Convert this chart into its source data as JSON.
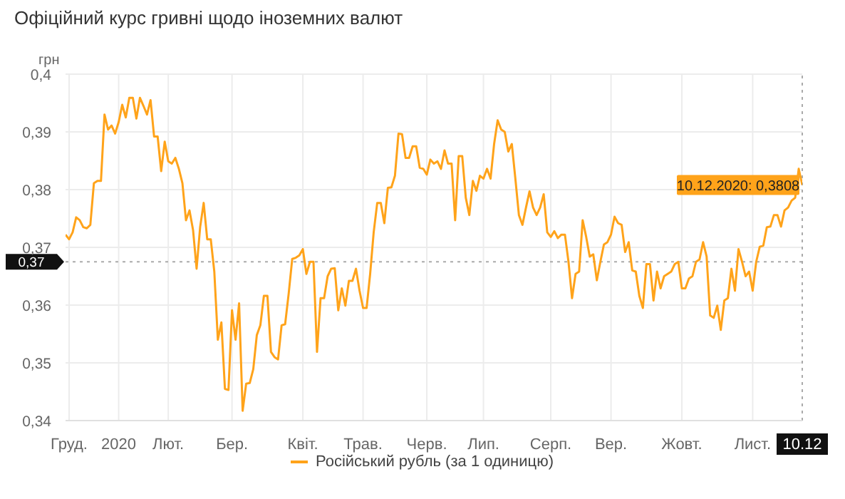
{
  "chart_data": {
    "type": "line",
    "title": "Офіційний курс гривні щодо іноземних валют",
    "ylabel": "грн",
    "categories": [
      null,
      "Груд.",
      null,
      null,
      null,
      null,
      null,
      null,
      null,
      null,
      null,
      null,
      null,
      null,
      null,
      "2020",
      null,
      null,
      null,
      null,
      null,
      null,
      null,
      null,
      null,
      null,
      null,
      null,
      null,
      "Лют.",
      null,
      null,
      null,
      null,
      null,
      null,
      null,
      null,
      null,
      null,
      null,
      null,
      null,
      null,
      null,
      null,
      null,
      "Бер.",
      null,
      null,
      null,
      null,
      null,
      null,
      null,
      null,
      null,
      null,
      null,
      null,
      null,
      null,
      null,
      null,
      null,
      null,
      null,
      "Квіт.",
      null,
      null,
      null,
      null,
      null,
      null,
      null,
      null,
      null,
      null,
      null,
      null,
      null,
      null,
      null,
      null,
      "Трав.",
      null,
      null,
      null,
      null,
      null,
      null,
      null,
      null,
      null,
      null,
      null,
      null,
      null,
      null,
      null,
      null,
      null,
      "Черв.",
      null,
      null,
      null,
      null,
      null,
      null,
      null,
      null,
      null,
      null,
      null,
      null,
      null,
      null,
      null,
      "Лип.",
      null,
      null,
      null,
      null,
      null,
      null,
      null,
      null,
      null,
      null,
      null,
      null,
      null,
      null,
      null,
      null,
      null,
      null,
      "Серп.",
      null,
      null,
      null,
      null,
      null,
      null,
      null,
      null,
      null,
      null,
      null,
      null,
      null,
      null,
      null,
      null,
      "Вер.",
      null,
      null,
      null,
      null,
      null,
      null,
      null,
      null,
      null,
      null,
      null,
      null,
      null,
      null,
      null,
      null,
      null,
      null,
      null,
      "Жовт.",
      null,
      null,
      null,
      null,
      null,
      null,
      null,
      null,
      null,
      null,
      null,
      null,
      null,
      null,
      null,
      null,
      null,
      null,
      null,
      "Лист.",
      null,
      null,
      null,
      null,
      null,
      null,
      null,
      null,
      null,
      null,
      null,
      null,
      null,
      "10.12"
    ],
    "ylim": [
      0.34,
      0.4
    ],
    "yticks": [
      {
        "value": 0.34,
        "label": "0,34"
      },
      {
        "value": 0.35,
        "label": "0,35"
      },
      {
        "value": 0.36,
        "label": "0,36"
      },
      {
        "value": 0.37,
        "label": "0,37"
      },
      {
        "value": 0.38,
        "label": "0,38"
      },
      {
        "value": 0.39,
        "label": "0,39"
      },
      {
        "value": 0.4,
        "label": "0,4"
      }
    ],
    "grid": true,
    "legend": "bottom",
    "ref_lines": [
      {
        "axis": "y",
        "value": 0.3675,
        "label": "0,37",
        "color": "#aaaaaa",
        "line_style": "dotted"
      },
      {
        "axis": "x",
        "value": "10.12",
        "color": "#aaaaaa",
        "line_style": "dotted"
      }
    ],
    "annotations": [
      {
        "text": "10.12.2020: 0,3808",
        "x": "10.12",
        "y": 0.3808
      }
    ],
    "series": [
      {
        "name": "Російський рубль (за 1 одиницю)",
        "color": "#ffa31a",
        "values": [
          0.3722,
          0.3714,
          0.3726,
          0.3752,
          0.3747,
          0.3735,
          0.3733,
          0.3739,
          0.3811,
          0.3815,
          0.3815,
          0.393,
          0.3904,
          0.3911,
          0.3897,
          0.3917,
          0.3947,
          0.3925,
          0.3959,
          0.3959,
          0.3923,
          0.3959,
          0.3945,
          0.393,
          0.3955,
          0.3892,
          0.3892,
          0.3832,
          0.3883,
          0.3849,
          0.3845,
          0.3855,
          0.3836,
          0.3811,
          0.3747,
          0.3764,
          0.373,
          0.3663,
          0.3735,
          0.3777,
          0.3714,
          0.3714,
          0.3658,
          0.354,
          0.357,
          0.3455,
          0.3453,
          0.3591,
          0.354,
          0.3603,
          0.3417,
          0.3464,
          0.3465,
          0.3489,
          0.3548,
          0.3565,
          0.3616,
          0.3616,
          0.3519,
          0.351,
          0.3506,
          0.3565,
          0.3567,
          0.362,
          0.368,
          0.3682,
          0.3686,
          0.3697,
          0.3654,
          0.3675,
          0.3675,
          0.3519,
          0.3612,
          0.3612,
          0.365,
          0.3663,
          0.3664,
          0.3591,
          0.3629,
          0.3599,
          0.3642,
          0.3642,
          0.3663,
          0.3625,
          0.3595,
          0.3595,
          0.3654,
          0.3726,
          0.3777,
          0.3777,
          0.3742,
          0.3803,
          0.3804,
          0.3824,
          0.3897,
          0.3896,
          0.3855,
          0.3855,
          0.3875,
          0.3875,
          0.3838,
          0.3836,
          0.3826,
          0.3852,
          0.3845,
          0.3849,
          0.3836,
          0.3868,
          0.3845,
          0.3845,
          0.3747,
          0.3858,
          0.3858,
          0.3786,
          0.3756,
          0.3815,
          0.3798,
          0.3824,
          0.3819,
          0.3836,
          0.3819,
          0.3879,
          0.392,
          0.3904,
          0.39,
          0.3866,
          0.3879,
          0.3819,
          0.3756,
          0.3739,
          0.3769,
          0.3797,
          0.3769,
          0.3756,
          0.3769,
          0.3792,
          0.3726,
          0.3718,
          0.3728,
          0.3716,
          0.3722,
          0.3722,
          0.3675,
          0.3612,
          0.3654,
          0.3658,
          0.3747,
          0.3718,
          0.3684,
          0.3688,
          0.3643,
          0.3675,
          0.3705,
          0.3709,
          0.3722,
          0.3753,
          0.3742,
          0.3739,
          0.3692,
          0.3709,
          0.366,
          0.3658,
          0.3616,
          0.3595,
          0.3671,
          0.3671,
          0.3608,
          0.3658,
          0.3629,
          0.365,
          0.3654,
          0.3658,
          0.3671,
          0.3675,
          0.3629,
          0.3629,
          0.3646,
          0.365,
          0.3675,
          0.3679,
          0.3709,
          0.3684,
          0.3582,
          0.3578,
          0.3599,
          0.3557,
          0.3608,
          0.3612,
          0.3663,
          0.3625,
          0.3697,
          0.3675,
          0.365,
          0.3658,
          0.3625,
          0.3675,
          0.3701,
          0.3703,
          0.3735,
          0.3736,
          0.3756,
          0.3756,
          0.3736,
          0.3764,
          0.3769,
          0.3781,
          0.3786,
          0.3836,
          0.3808
        ]
      }
    ]
  }
}
